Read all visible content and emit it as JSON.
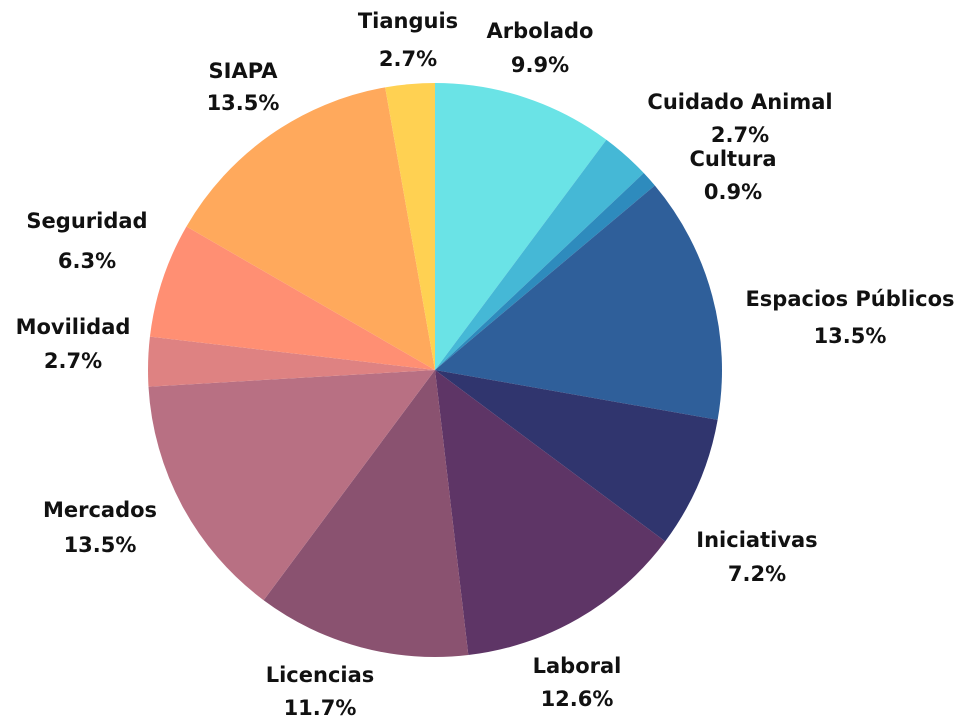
{
  "chart_data": {
    "type": "pie",
    "categories": [
      "Arbolado",
      "Cuidado Animal",
      "Cultura",
      "Espacios Públicos",
      "Iniciativas",
      "Laboral",
      "Licencias",
      "Mercados",
      "Movilidad",
      "Seguridad",
      "SIAPA",
      "Tianguis"
    ],
    "values": [
      9.9,
      2.7,
      0.9,
      13.5,
      7.2,
      12.6,
      11.7,
      13.5,
      2.7,
      6.3,
      13.5,
      2.7
    ],
    "value_labels": [
      "9.9%",
      "2.7%",
      "0.9%",
      "13.5%",
      "7.2%",
      "12.6%",
      "11.7%",
      "13.5%",
      "2.7%",
      "6.3%",
      "13.5%",
      "2.7%"
    ],
    "colors": [
      "#6ae3e6",
      "#45b8d6",
      "#2e8bbd",
      "#2f5f9a",
      "#30356e",
      "#5e3566",
      "#8a5270",
      "#b87083",
      "#de8282",
      "#ff8f73",
      "#ffa95c",
      "#ffd152"
    ]
  }
}
